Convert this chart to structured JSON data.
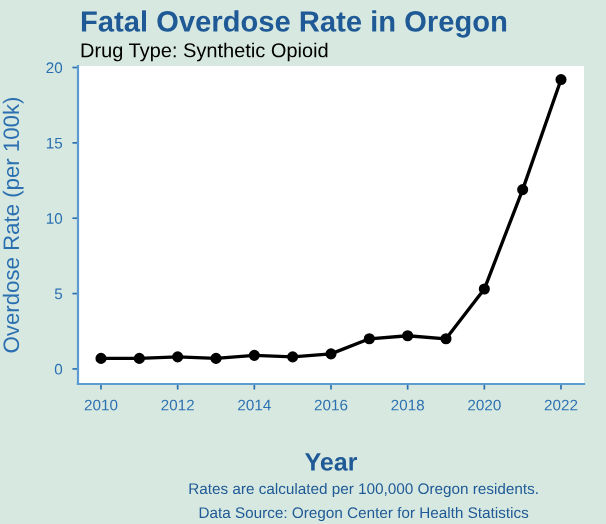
{
  "chart_data": {
    "type": "line",
    "title": "Fatal Overdose Rate in Oregon",
    "subtitle": "Drug Type: Synthetic Opioid",
    "xlabel": "Year",
    "ylabel": "Overdose Rate (per 100k)",
    "x": [
      2010,
      2011,
      2012,
      2013,
      2014,
      2015,
      2016,
      2017,
      2018,
      2019,
      2020,
      2021,
      2022
    ],
    "series": [
      {
        "color": "#000000",
        "values": [
          0.7,
          0.7,
          0.8,
          0.7,
          0.9,
          0.8,
          1.0,
          2.0,
          2.2,
          2.0,
          5.3,
          11.9,
          19.2
        ]
      }
    ],
    "xlim": [
      2009.4,
      2022.6
    ],
    "xticks": [
      2010,
      2012,
      2014,
      2016,
      2018,
      2020,
      2022
    ],
    "ylim": [
      -1,
      20.1
    ],
    "yticks": [
      0,
      5,
      10,
      15,
      20
    ],
    "marker": "circle",
    "line_style": "solid",
    "grid": false,
    "legend": false,
    "annotations": [
      "Rates are calculated per 100,000 Oregon residents.",
      "Data Source: Oregon Center for Health Statistics"
    ]
  }
}
